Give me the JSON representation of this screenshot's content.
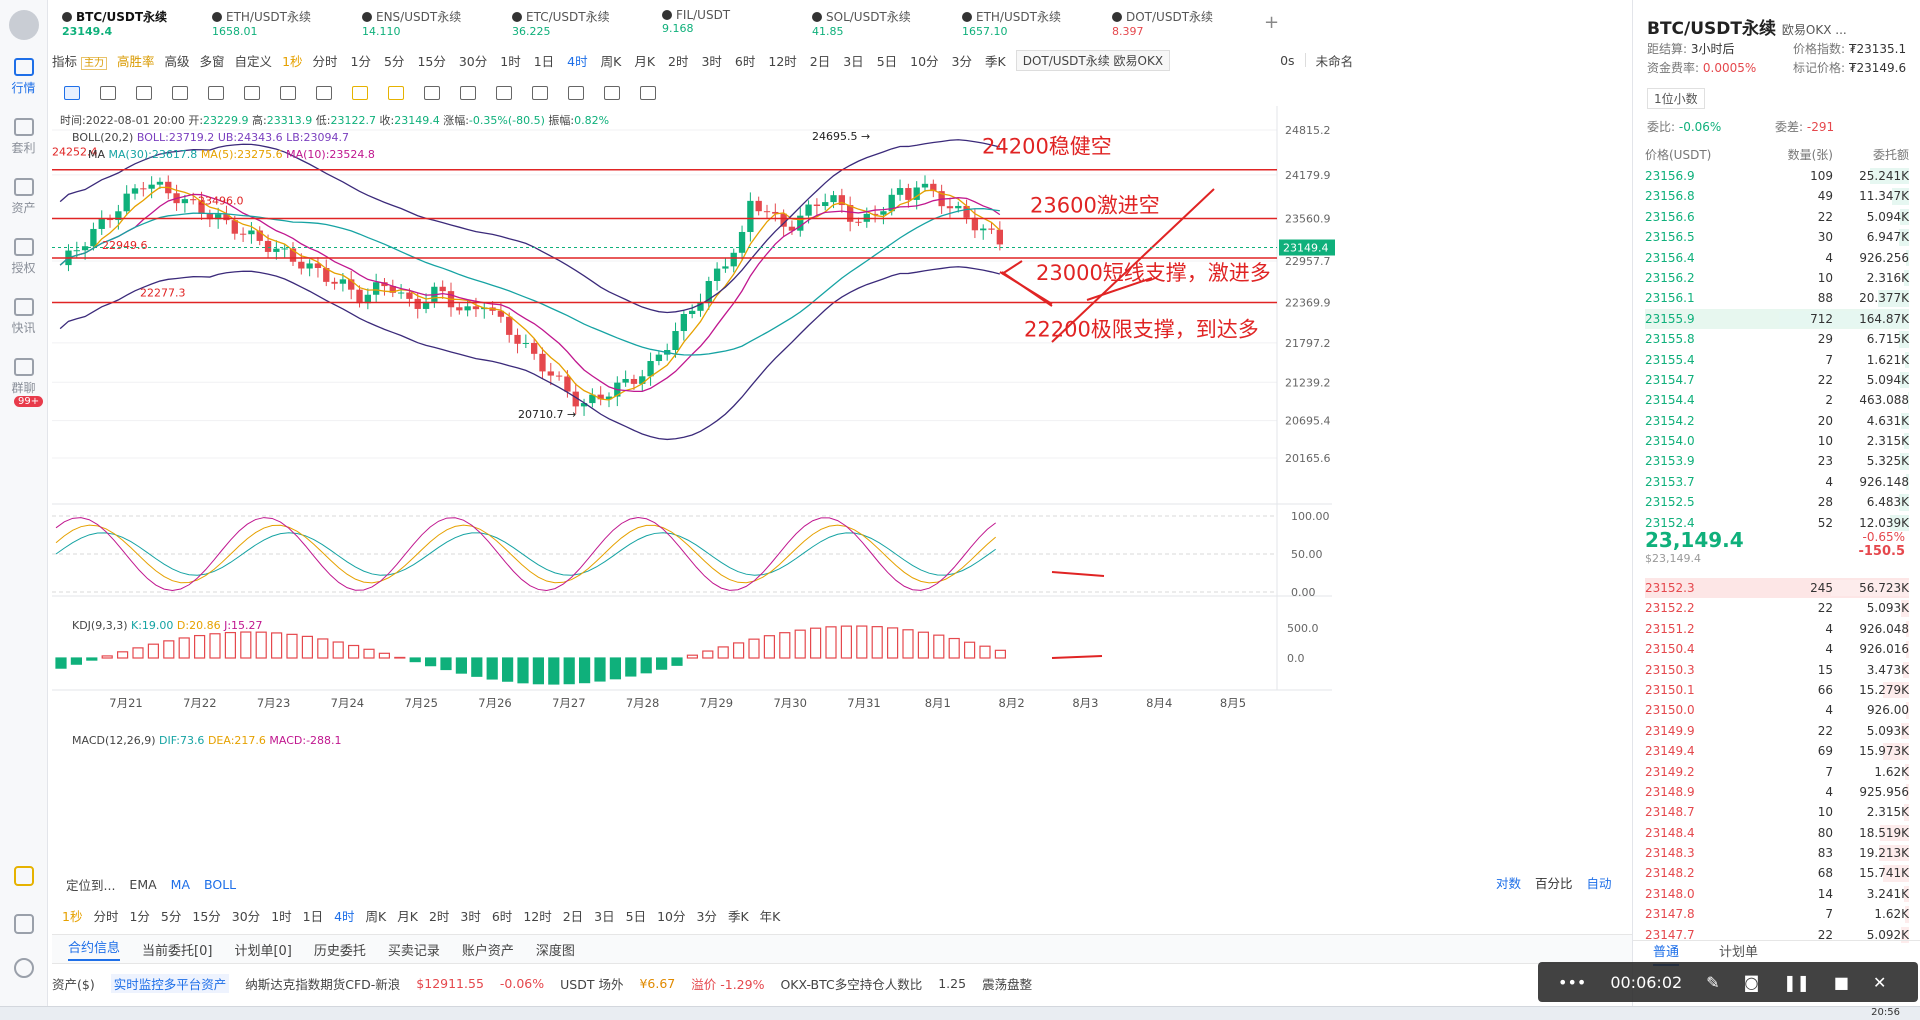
{
  "rail": {
    "items": [
      {
        "label": "行情",
        "icon": "chart-icon",
        "active": true
      },
      {
        "label": "套利",
        "icon": "arbitrage-icon"
      },
      {
        "label": "资产",
        "icon": "wallet-icon"
      },
      {
        "label": "授权",
        "icon": "key-icon"
      },
      {
        "label": "快讯",
        "icon": "news-icon"
      },
      {
        "label": "群聊",
        "icon": "chat-icon"
      }
    ],
    "badge": "99+"
  },
  "tabs": [
    {
      "name": "BTC/USDT永续",
      "price": "23149.4",
      "dir": "up",
      "active": true
    },
    {
      "name": "ETH/USDT永续",
      "price": "1658.01",
      "dir": "up"
    },
    {
      "name": "ENS/USDT永续",
      "price": "14.110",
      "dir": "up"
    },
    {
      "name": "ETC/USDT永续",
      "price": "36.225",
      "dir": "up"
    },
    {
      "name": "FIL/USDT",
      "price": "9.168",
      "dir": "up"
    },
    {
      "name": "SOL/USDT永续",
      "price": "41.85",
      "dir": "up"
    },
    {
      "name": "ETH/USDT永续",
      "price": "1657.10",
      "dir": "up"
    },
    {
      "name": "DOT/USDT永续",
      "price": "8.397",
      "dir": "dn"
    }
  ],
  "toolbar": {
    "indicator": "指标",
    "main_tag": "主力",
    "win_rate": "高胜率",
    "advanced": "高级",
    "multi": "多窗",
    "custom": "自定义",
    "one_sec": "1秒",
    "intervals": [
      "分时",
      "1分",
      "5分",
      "15分",
      "30分",
      "1时",
      "1日",
      "4时",
      "周K",
      "月K",
      "2时",
      "3时",
      "6时",
      "12时",
      "2日",
      "3日",
      "5日",
      "10分",
      "3分",
      "季K"
    ],
    "active_interval": "4时",
    "tooltip": "DOT/USDT永续 欧易OKX",
    "countdown": "0s",
    "unnamed": "未命名"
  },
  "legend": {
    "ohlc_label": "时间:2022-08-01 20:00 开:",
    "open": "23229.9",
    "high_label": "高:",
    "high": "23313.9",
    "low_label": "低:",
    "low": "23122.7",
    "close_label": "收:",
    "close": "23149.4",
    "chg_label": "涨幅:",
    "chg": "-0.35%(-80.5)",
    "amp_label": "振幅:",
    "amp": "0.82%",
    "boll": "BOLL(20,2)",
    "boll_mid": "BOLL:23719.2",
    "boll_ub": "UB:24343.6",
    "boll_lb": "LB:23094.7",
    "ma_label": "MA",
    "ma30": "MA(30):23617.8",
    "ma5": "MA(5):23275.6",
    "ma10": "MA(10):23524.8",
    "kdj": "KDJ(9,3,3)",
    "kdj_k": "K:19.00",
    "kdj_d": "D:20.86",
    "kdj_j": "J:15.27",
    "macd": "MACD(12,26,9)",
    "macd_dif": "DIF:73.6",
    "macd_dea": "DEA:217.6",
    "macd_val": "MACD:-288.1"
  },
  "chart_data": {
    "type": "candlestick",
    "y_ticks": [
      "24815.2",
      "24179.9",
      "23560.9",
      "22957.7",
      "22369.9",
      "21797.2",
      "21239.2",
      "20695.4",
      "20165.6"
    ],
    "y_values": [
      24815.2,
      24179.9,
      23560.9,
      22957.7,
      22369.9,
      21797.2,
      21239.2,
      20695.4,
      20165.6
    ],
    "x_ticks": [
      "7月21",
      "7月22",
      "7月23",
      "7月24",
      "7月25",
      "7月26",
      "7月27",
      "7月28",
      "7月29",
      "7月30",
      "7月31",
      "8月1",
      "8月2",
      "8月3",
      "8月4",
      "8月5"
    ],
    "last_price": "23149.4",
    "annotations": {
      "left_level": "24252.4",
      "high_marker": "24695.5 →",
      "low_marker": "20710.7 →",
      "mid_left": "23496.0",
      "left_22949": "22949.6",
      "left_22277": "22277.3"
    },
    "levels": [
      {
        "price": 24252.4,
        "label": "24200稳健空"
      },
      {
        "price": 23560.9,
        "label": "23600激进空"
      },
      {
        "price": 23000,
        "label": "23000短线支撑，激进多"
      },
      {
        "price": 22369.9,
        "label": "22200极限支撑，到达多"
      }
    ],
    "kdj_ticks": [
      "100.00",
      "50.00",
      "0.00"
    ],
    "macd_ticks": [
      "500.0",
      "0.0"
    ]
  },
  "bottom": {
    "locate": "定位到...",
    "ema": "EMA",
    "ma": "MA",
    "boll": "BOLL",
    "log": "对数",
    "pct": "百分比",
    "auto": "自动",
    "intervals": [
      "1秒",
      "分时",
      "1分",
      "5分",
      "15分",
      "30分",
      "1时",
      "1日",
      "4时",
      "周K",
      "月K",
      "2时",
      "3时",
      "6时",
      "12时",
      "2日",
      "3日",
      "5日",
      "10分",
      "3分",
      "季K",
      "年K"
    ],
    "active_interval": "4时",
    "panels": [
      "合约信息",
      "当前委托[0]",
      "计划单[0]",
      "历史委托",
      "买卖记录",
      "账户资产",
      "深度图"
    ],
    "ticker": {
      "assets": "资产($)",
      "monitor": "实时监控多平台资产",
      "nasdaq": "纳斯达克指数期货CFD-新浪",
      "nasdaq_val": "$12911.55",
      "nasdaq_chg": "-0.06%",
      "usdt": "USDT 场外",
      "usdt_val": "¥6.67",
      "usdt_prem": "溢价 -1.29%",
      "ratio": "OKX-BTC多空持仓人数比",
      "ratio_val": "1.25",
      "ratio_state": "震荡盘整"
    }
  },
  "right": {
    "title": "BTC/USDT永续",
    "exchange": "欧易OKX ...",
    "settle_label": "距结算:",
    "settle": "3小时后",
    "index_label": "价格指数:",
    "index": "₮23135.1",
    "funding_label": "资金费率:",
    "funding": "0.0005%",
    "mark_label": "标记价格:",
    "mark": "₮23149.6",
    "decimal": "1位小数",
    "ratio_label": "委比:",
    "ratio": "-0.06%",
    "diff_label": "委差:",
    "diff": "-291",
    "headers": [
      "价格(USDT)",
      "数量(张)",
      "委托额"
    ],
    "asks": [
      [
        "23156.9",
        "109",
        "25.241K",
        0.3
      ],
      [
        "23156.8",
        "49",
        "11.347K",
        0.13
      ],
      [
        "23156.6",
        "22",
        "5.094K",
        0.07
      ],
      [
        "23156.5",
        "30",
        "6.947K",
        0.08
      ],
      [
        "23156.4",
        "4",
        "926.256",
        0.02
      ],
      [
        "23156.2",
        "10",
        "2.316K",
        0.04
      ],
      [
        "23156.1",
        "88",
        "20.377K",
        0.24
      ],
      [
        "23155.9",
        "712",
        "164.87K",
        1.0
      ],
      [
        "23155.8",
        "29",
        "6.715K",
        0.08
      ],
      [
        "23155.4",
        "7",
        "1.621K",
        0.03
      ],
      [
        "23154.7",
        "22",
        "5.094K",
        0.07
      ],
      [
        "23154.4",
        "2",
        "463.088",
        0.01
      ],
      [
        "23154.2",
        "20",
        "4.631K",
        0.06
      ],
      [
        "23154.0",
        "10",
        "2.315K",
        0.04
      ],
      [
        "23153.9",
        "23",
        "5.325K",
        0.07
      ],
      [
        "23153.7",
        "4",
        "926.148",
        0.02
      ],
      [
        "23152.5",
        "28",
        "6.483K",
        0.08
      ],
      [
        "23152.4",
        "52",
        "12.039K",
        0.15
      ]
    ],
    "last": "23,149.4",
    "last_sub": "$23,149.4",
    "chg_pct": "-0.65%",
    "chg_abs": "-150.5",
    "bids": [
      [
        "23152.3",
        "245",
        "56.723K",
        0.6
      ],
      [
        "23152.2",
        "22",
        "5.093K",
        0.06
      ],
      [
        "23151.2",
        "4",
        "926.048",
        0.02
      ],
      [
        "23150.4",
        "4",
        "926.016",
        0.02
      ],
      [
        "23150.3",
        "15",
        "3.473K",
        0.05
      ],
      [
        "23150.1",
        "66",
        "15.279K",
        0.2
      ],
      [
        "23150.0",
        "4",
        "926.00",
        0.02
      ],
      [
        "23149.9",
        "22",
        "5.093K",
        0.06
      ],
      [
        "23149.4",
        "69",
        "15.973K",
        0.2
      ],
      [
        "23149.2",
        "7",
        "1.62K",
        0.03
      ],
      [
        "23148.9",
        "4",
        "925.956",
        0.02
      ],
      [
        "23148.7",
        "10",
        "2.315K",
        0.04
      ],
      [
        "23148.4",
        "80",
        "18.519K",
        0.22
      ],
      [
        "23148.3",
        "83",
        "19.213K",
        0.23
      ],
      [
        "23148.2",
        "68",
        "15.741K",
        0.2
      ],
      [
        "23148.0",
        "14",
        "3.241K",
        0.04
      ],
      [
        "23147.8",
        "7",
        "1.62K",
        0.03
      ],
      [
        "23147.7",
        "22",
        "5.092K",
        0.06
      ]
    ],
    "footer": [
      "普通",
      "计划单"
    ]
  },
  "recorder": {
    "time": "00:06:02"
  },
  "taskbar": {
    "clock": "20:56"
  }
}
